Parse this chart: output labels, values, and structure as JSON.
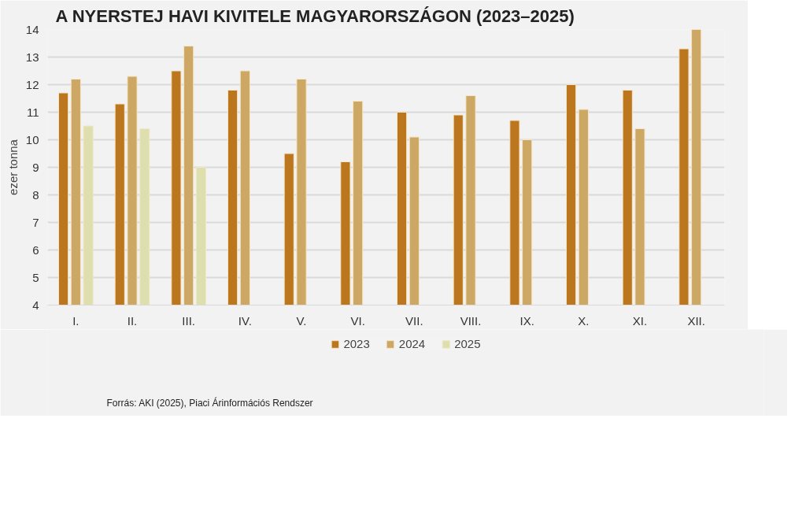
{
  "chart_data": {
    "type": "bar",
    "title": "A NYERSTEJ HAVI KIVITELE MAGYARORSZÁGON (2023–2025)",
    "ylabel": "ezer tonna",
    "categories": [
      "I.",
      "II.",
      "III.",
      "IV.",
      "V.",
      "VI.",
      "VII.",
      "VIII.",
      "IX.",
      "X.",
      "XI.",
      "XII."
    ],
    "series": [
      {
        "name": "2023",
        "color": "#bb761e",
        "values": [
          11.7,
          11.3,
          12.5,
          11.8,
          9.5,
          9.2,
          11.0,
          10.9,
          10.7,
          12.0,
          11.8,
          13.3
        ]
      },
      {
        "name": "2024",
        "color": "#cca864",
        "values": [
          12.2,
          12.3,
          13.4,
          12.5,
          12.2,
          11.4,
          10.1,
          11.6,
          10.0,
          11.1,
          10.4,
          14.0
        ]
      },
      {
        "name": "2025",
        "color": "#dde0ae",
        "values": [
          10.5,
          10.4,
          9.0,
          null,
          null,
          null,
          null,
          null,
          null,
          null,
          null,
          null
        ]
      }
    ],
    "ylim": [
      4,
      14
    ],
    "yticks": [
      4,
      5,
      6,
      7,
      8,
      9,
      10,
      11,
      12,
      13,
      14
    ],
    "grid": "y",
    "legend": "bottom",
    "annotations": [
      "Forrás: AKI (2025), Piaci Árinformációs Rendszer"
    ]
  }
}
